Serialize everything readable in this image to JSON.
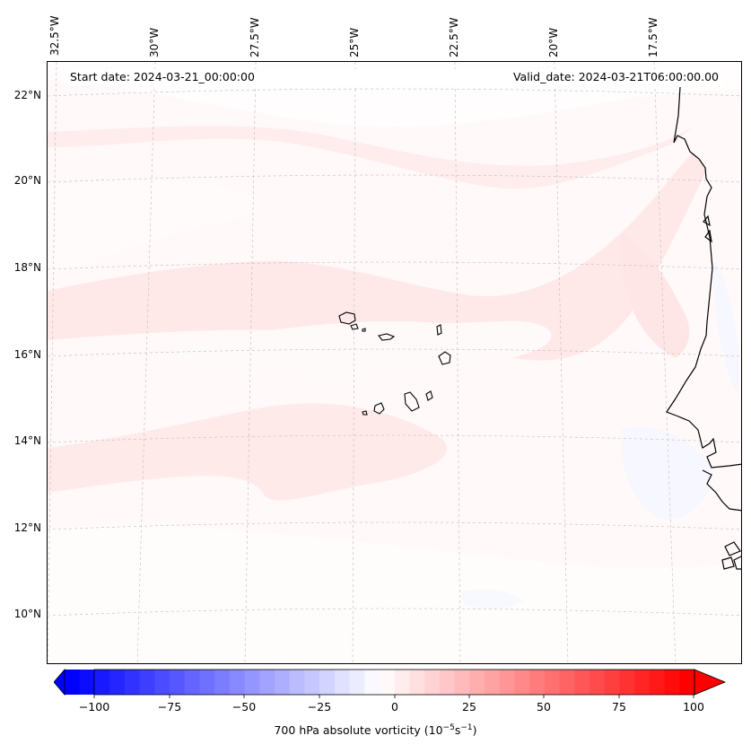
{
  "map": {
    "start_date": "Start date: 2024-03-21_00:00:00",
    "valid_date": "Valid_date: 2024-03-21T06:00:00.00",
    "lon_labels": [
      "32.5°W",
      "30°W",
      "27.5°W",
      "25°W",
      "22.5°W",
      "20°W",
      "17.5°W"
    ],
    "lat_labels": [
      "22°N",
      "20°N",
      "18°N",
      "16°N",
      "14°N",
      "12°N",
      "10°N"
    ],
    "field_colors": {
      "background": "#fff9f9",
      "light_band": "#fffafa",
      "medium_band": "#ffe9e9",
      "negative_patch": "#f7f8ff",
      "coastline": "#000000"
    }
  },
  "colorbar": {
    "ticks": [
      "−100",
      "−75",
      "−50",
      "−25",
      "0",
      "25",
      "50",
      "75",
      "100"
    ],
    "label_prefix": "700 hPa absolute vorticity (10",
    "label_exp1": "−5",
    "label_mid": "s",
    "label_exp2": "−1",
    "label_suffix": ")",
    "min_color": "#0000ff",
    "zero_color": "#ffffff",
    "max_color": "#ff0000"
  }
}
